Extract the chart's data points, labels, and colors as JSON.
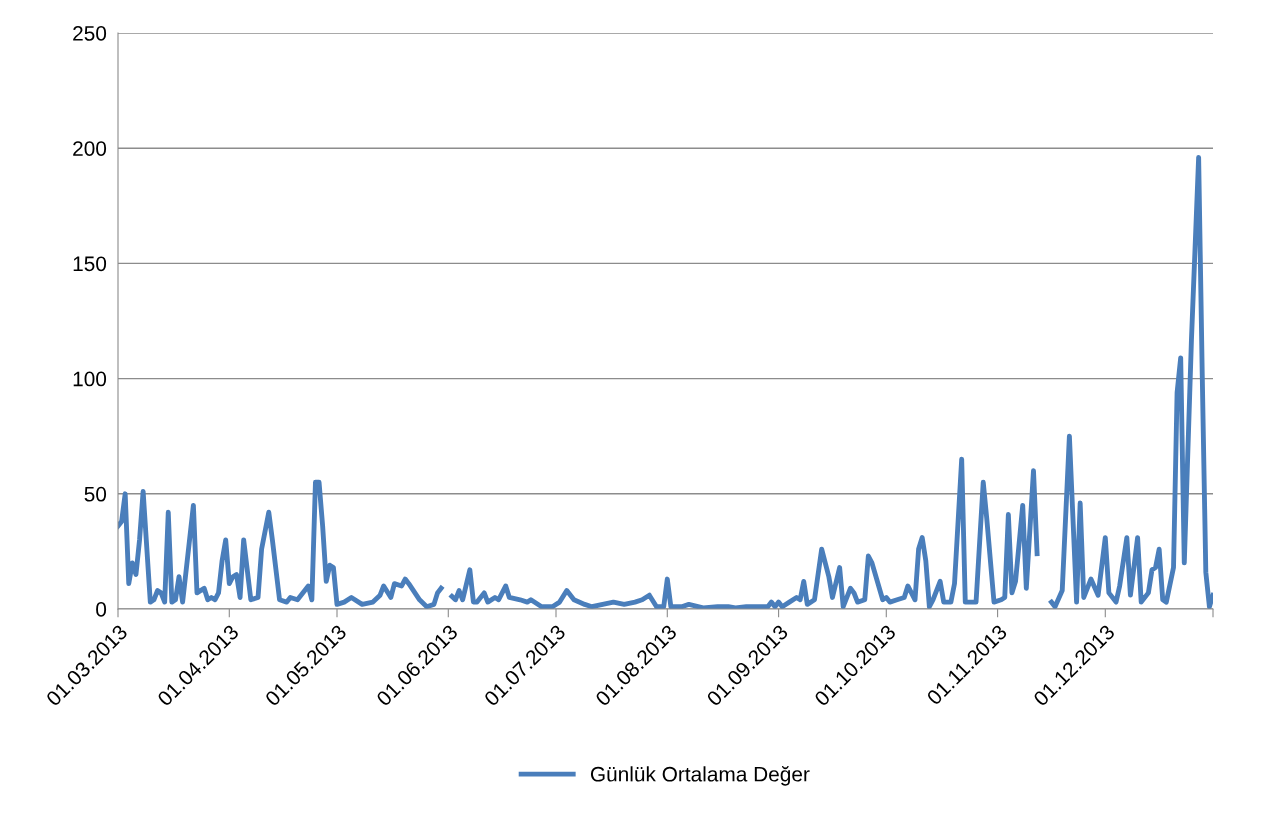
{
  "chart_data": {
    "type": "line",
    "x": [
      "2013-03-01",
      "2013-03-02",
      "2013-03-03",
      "2013-03-04",
      "2013-03-05",
      "2013-03-06",
      "2013-03-07",
      "2013-03-08",
      "2013-03-10",
      "2013-03-11",
      "2013-03-12",
      "2013-03-13",
      "2013-03-14",
      "2013-03-15",
      "2013-03-16",
      "2013-03-17",
      "2013-03-18",
      "2013-03-19",
      "2013-03-22",
      "2013-03-23",
      "2013-03-25",
      "2013-03-26",
      "2013-03-27",
      "2013-03-28",
      "2013-03-29",
      "2013-03-30",
      "2013-03-31",
      "2013-04-01",
      "2013-04-02",
      "2013-04-03",
      "2013-04-04",
      "2013-04-05",
      "2013-04-07",
      "2013-04-09",
      "2013-04-10",
      "2013-04-12",
      "2013-04-13",
      "2013-04-15",
      "2013-04-17",
      "2013-04-18",
      "2013-04-20",
      "2013-04-23",
      "2013-04-24",
      "2013-04-25",
      "2013-04-26",
      "2013-04-27",
      "2013-04-28",
      "2013-04-29",
      "2013-04-30",
      "2013-05-01",
      "2013-05-03",
      "2013-05-05",
      "2013-05-08",
      "2013-05-11",
      "2013-05-13",
      "2013-05-14",
      "2013-05-16",
      "2013-05-17",
      "2013-05-19",
      "2013-05-20",
      "2013-05-21",
      "2013-05-24",
      "2013-05-26",
      "2013-05-28",
      "2013-05-29",
      "2013-05-30",
      "2013-05-31",
      "2013-06-02",
      "2013-06-03",
      "2013-06-04",
      "2013-06-05",
      "2013-06-07",
      "2013-06-08",
      "2013-06-09",
      "2013-06-11",
      "2013-06-12",
      "2013-06-14",
      "2013-06-15",
      "2013-06-17",
      "2013-06-18",
      "2013-06-21",
      "2013-06-23",
      "2013-06-24",
      "2013-06-27",
      "2013-06-30",
      "2013-07-02",
      "2013-07-04",
      "2013-07-06",
      "2013-07-09",
      "2013-07-11",
      "2013-07-14",
      "2013-07-17",
      "2013-07-20",
      "2013-07-23",
      "2013-07-25",
      "2013-07-27",
      "2013-07-29",
      "2013-07-31",
      "2013-08-01",
      "2013-08-02",
      "2013-08-05",
      "2013-08-07",
      "2013-08-11",
      "2013-08-15",
      "2013-08-18",
      "2013-08-20",
      "2013-08-23",
      "2013-08-27",
      "2013-08-29",
      "2013-08-30",
      "2013-08-31",
      "2013-09-01",
      "2013-09-02",
      "2013-09-04",
      "2013-09-06",
      "2013-09-07",
      "2013-09-08",
      "2013-09-09",
      "2013-09-11",
      "2013-09-13",
      "2013-09-15",
      "2013-09-16",
      "2013-09-18",
      "2013-09-19",
      "2013-09-21",
      "2013-09-22",
      "2013-09-23",
      "2013-09-25",
      "2013-09-26",
      "2013-09-27",
      "2013-09-30",
      "2013-10-01",
      "2013-10-02",
      "2013-10-04",
      "2013-10-06",
      "2013-10-07",
      "2013-10-09",
      "2013-10-10",
      "2013-10-11",
      "2013-10-12",
      "2013-10-13",
      "2013-10-14",
      "2013-10-16",
      "2013-10-17",
      "2013-10-19",
      "2013-10-20",
      "2013-10-22",
      "2013-10-23",
      "2013-10-26",
      "2013-10-28",
      "2013-10-29",
      "2013-10-31",
      "2013-11-02",
      "2013-11-03",
      "2013-11-04",
      "2013-11-05",
      "2013-11-06",
      "2013-11-08",
      "2013-11-09",
      "2013-11-11",
      "2013-11-12",
      "2013-11-14",
      "2013-11-16",
      "2013-11-17",
      "2013-11-19",
      "2013-11-21",
      "2013-11-23",
      "2013-11-24",
      "2013-11-25",
      "2013-11-27",
      "2013-11-29",
      "2013-12-01",
      "2013-12-02",
      "2013-12-04",
      "2013-12-05",
      "2013-12-07",
      "2013-12-08",
      "2013-12-10",
      "2013-12-11",
      "2013-12-13",
      "2013-12-14",
      "2013-12-15",
      "2013-12-16",
      "2013-12-17",
      "2013-12-18",
      "2013-12-20",
      "2013-12-21",
      "2013-12-22",
      "2013-12-23",
      "2013-12-25",
      "2013-12-27",
      "2013-12-28",
      "2013-12-29",
      "2013-12-30",
      "2013-12-31"
    ],
    "series": [
      {
        "name": "Günlük Ortalama Değer",
        "color": "#4a7ebb",
        "values": [
          36,
          38,
          50,
          11,
          20,
          15,
          30,
          51,
          3,
          4,
          8,
          7,
          3,
          42,
          3,
          4,
          14,
          3,
          45,
          7,
          9,
          4,
          5,
          4,
          7,
          21,
          30,
          11,
          14,
          15,
          5,
          30,
          4,
          5,
          26,
          42,
          30,
          4,
          3,
          5,
          4,
          10,
          4,
          55,
          55,
          36,
          12,
          19,
          18,
          2,
          3,
          5,
          2,
          3,
          6,
          10,
          5,
          11,
          10,
          13,
          11,
          4,
          1,
          2,
          7,
          9,
          null,
          5.5,
          4,
          8,
          4,
          17,
          3,
          3,
          7,
          3,
          5,
          4,
          10,
          5,
          4,
          3,
          4,
          1,
          1,
          3,
          8,
          4,
          2,
          1,
          2,
          3,
          2,
          3,
          4,
          6,
          1,
          1,
          13,
          1,
          1,
          2,
          0.5,
          1,
          1,
          0.5,
          1,
          1,
          1,
          3,
          1,
          3,
          1,
          3,
          5,
          4,
          12,
          2,
          4,
          26,
          14,
          5,
          18,
          1,
          9,
          7,
          3,
          4,
          23,
          20,
          4,
          5,
          3,
          4,
          5,
          10,
          4,
          26,
          31,
          21,
          1,
          4,
          12,
          3,
          3,
          11,
          65,
          3,
          3,
          55,
          39,
          3,
          4,
          5,
          41,
          7,
          12,
          45,
          9,
          60,
          24,
          null,
          3,
          1,
          8,
          75,
          3,
          46,
          5,
          13,
          6,
          31,
          7,
          3,
          10,
          31,
          6,
          31,
          3,
          7,
          17,
          18,
          26,
          4,
          3,
          18,
          94,
          109,
          20,
          117,
          196,
          102,
          16,
          1,
          6
        ]
      }
    ],
    "xlim": [
      "2013-03-01",
      "2013-12-31"
    ],
    "xticks": [
      {
        "value": "2013-03-01",
        "label": "01.03.2013"
      },
      {
        "value": "2013-04-01",
        "label": "01.04.2013"
      },
      {
        "value": "2013-05-01",
        "label": "01.05.2013"
      },
      {
        "value": "2013-06-01",
        "label": "01.06.2013"
      },
      {
        "value": "2013-07-01",
        "label": "01.07.2013"
      },
      {
        "value": "2013-08-01",
        "label": "01.08.2013"
      },
      {
        "value": "2013-09-01",
        "label": "01.09.2013"
      },
      {
        "value": "2013-10-01",
        "label": "01.10.2013"
      },
      {
        "value": "2013-11-01",
        "label": "01.11.2013"
      },
      {
        "value": "2013-12-01",
        "label": "01.12.2013"
      },
      {
        "value": "2013-12-31",
        "label": null
      }
    ],
    "ylim": [
      0,
      250
    ],
    "yticks": [
      0,
      50,
      100,
      150,
      200,
      250
    ],
    "grid": "y",
    "legend": "bottom",
    "marker": "none",
    "line_style": "solid"
  }
}
